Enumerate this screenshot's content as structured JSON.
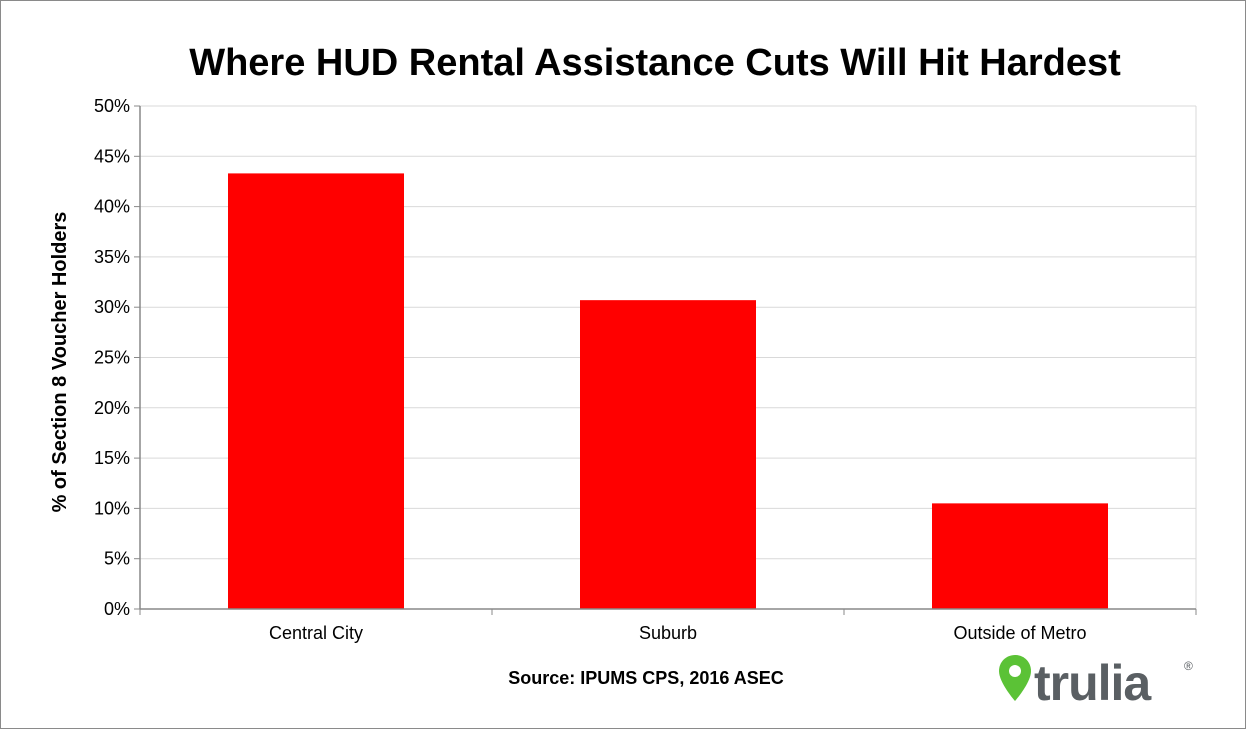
{
  "chart_data": {
    "type": "bar",
    "title": "Where HUD Rental Assistance Cuts Will Hit Hardest",
    "ylabel": "% of Section 8 Voucher Holders",
    "xlabel": "",
    "categories": [
      "Central City",
      "Suburb",
      "Outside of Metro"
    ],
    "values": [
      43.3,
      30.7,
      10.5
    ],
    "ylim": [
      0,
      50
    ],
    "yticks": [
      0,
      5,
      10,
      15,
      20,
      25,
      30,
      35,
      40,
      45,
      50
    ],
    "ytick_labels": [
      "0%",
      "5%",
      "10%",
      "15%",
      "20%",
      "25%",
      "30%",
      "35%",
      "40%",
      "45%",
      "50%"
    ],
    "grid": true,
    "legend": "none",
    "bar_color": "#ff0000",
    "source": "Source: IPUMS CPS, 2016 ASEC"
  },
  "logo": {
    "text": "trulia",
    "registered_mark": "®",
    "icon": "location-pin-icon",
    "pin_color": "#5bc236",
    "text_color": "#5a5f63"
  },
  "colors": {
    "grid": "#d9d9d9",
    "axis": "#888888",
    "frame": "#8a8a8a"
  }
}
